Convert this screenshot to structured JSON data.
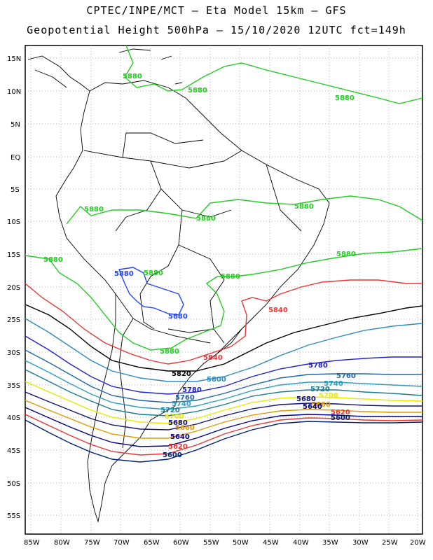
{
  "titles": {
    "line1": "CPTEC/INPE/MCT –  Eta Model 15km – GFS",
    "line2": "Geopotential Height 500hPa – 15/10/2020 12UTC fct=149h"
  },
  "axes": {
    "lat_labels": [
      "15N",
      "10N",
      "5N",
      "EQ",
      "5S",
      "10S",
      "15S",
      "20S",
      "25S",
      "30S",
      "35S",
      "40S",
      "45S",
      "50S",
      "55S"
    ],
    "lon_labels": [
      "85W",
      "80W",
      "75W",
      "70W",
      "65W",
      "60W",
      "55W",
      "50W",
      "45W",
      "40W",
      "35W",
      "30W",
      "25W",
      "20W"
    ]
  },
  "colors": {
    "c5880": "#22cc22",
    "c5880_blue": "#2244ff",
    "c5840": "#ee3333",
    "c5820": "#000000",
    "c5800": "#2e8bbd",
    "c5780": "#2222cc",
    "c5760": "#2266aa",
    "c5740": "#2a9dbf",
    "c5720": "#1a7a8a",
    "c5700": "#e8e800",
    "c5680": "#111177",
    "c5660": "#dd9900",
    "c5640": "#000080",
    "c5620": "#ee3333",
    "c5600": "#001f7a"
  },
  "contour_labels": [
    {
      "text": "5880",
      "color": "c5880"
    },
    {
      "text": "5880",
      "color": "c5880"
    },
    {
      "text": "5880",
      "color": "c5880"
    },
    {
      "text": "5880",
      "color": "c5880"
    },
    {
      "text": "5880",
      "color": "c5880"
    },
    {
      "text": "5880",
      "color": "c5880"
    },
    {
      "text": "5880",
      "color": "c5880"
    },
    {
      "text": "5880",
      "color": "c5880"
    },
    {
      "text": "5880",
      "color": "c5880"
    },
    {
      "text": "5880",
      "color": "c5880"
    },
    {
      "text": "5880",
      "color": "c5880_blue"
    },
    {
      "text": "5880",
      "color": "c5880_blue"
    },
    {
      "text": "5880",
      "color": "c5880"
    },
    {
      "text": "5840",
      "color": "c5840"
    },
    {
      "text": "5840",
      "color": "c5840"
    },
    {
      "text": "5820",
      "color": "c5820"
    },
    {
      "text": "5800",
      "color": "c5800"
    },
    {
      "text": "5780",
      "color": "c5780"
    },
    {
      "text": "5780",
      "color": "c5780"
    },
    {
      "text": "5760",
      "color": "c5760"
    },
    {
      "text": "5760",
      "color": "c5760"
    },
    {
      "text": "5740",
      "color": "c5740"
    },
    {
      "text": "5740",
      "color": "c5740"
    },
    {
      "text": "5720",
      "color": "c5720"
    },
    {
      "text": "5720",
      "color": "c5720"
    },
    {
      "text": "5700",
      "color": "c5700"
    },
    {
      "text": "5700",
      "color": "c5700"
    },
    {
      "text": "5680",
      "color": "c5680"
    },
    {
      "text": "5680",
      "color": "c5680"
    },
    {
      "text": "5660",
      "color": "c5660"
    },
    {
      "text": "5660",
      "color": "c5660"
    },
    {
      "text": "5640",
      "color": "c5640"
    },
    {
      "text": "5640",
      "color": "c5640"
    },
    {
      "text": "5620",
      "color": "c5620"
    },
    {
      "text": "5620",
      "color": "c5620"
    },
    {
      "text": "5600",
      "color": "c5600"
    },
    {
      "text": "5600",
      "color": "c5600"
    }
  ]
}
